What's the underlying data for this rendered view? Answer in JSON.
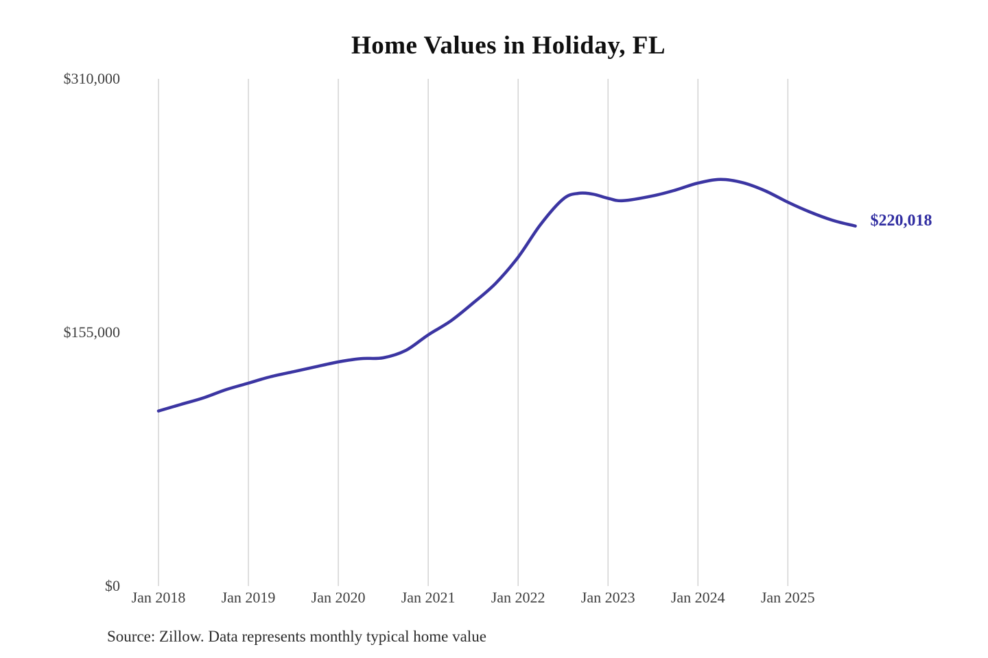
{
  "page": {
    "background": "#ffffff"
  },
  "chart": {
    "title": "Home Values in Holiday, FL",
    "source_note": "Source: Zillow. Data represents monthly typical home value",
    "end_label": "$220,018",
    "colors": {
      "line": "#3b35a2",
      "end_label": "#302da1",
      "gridline": "#cccccc",
      "tick_text": "#3d3d3d",
      "title_text": "#0f0f0f",
      "source_text": "#2b2b2b",
      "background": "#ffffff"
    }
  },
  "chart_data": {
    "type": "line",
    "title": "Home Values in Holiday, FL",
    "xlabel": "",
    "ylabel": "",
    "ylim": [
      0,
      310000
    ],
    "grid": "vertical-only",
    "legend": "none",
    "y_ticks": [
      {
        "label": "$0",
        "value": 0
      },
      {
        "label": "$155,000",
        "value": 155000
      },
      {
        "label": "$310,000",
        "value": 310000
      }
    ],
    "x_ticks": [
      {
        "label": "Jan 2018",
        "month_index": 0
      },
      {
        "label": "Jan 2019",
        "month_index": 12
      },
      {
        "label": "Jan 2020",
        "month_index": 24
      },
      {
        "label": "Jan 2021",
        "month_index": 36
      },
      {
        "label": "Jan 2022",
        "month_index": 48
      },
      {
        "label": "Jan 2023",
        "month_index": 60
      },
      {
        "label": "Jan 2024",
        "month_index": 72
      },
      {
        "label": "Jan 2025",
        "month_index": 84
      }
    ],
    "series": [
      {
        "name": "Monthly typical home value",
        "final_value": 220018,
        "final_label": "$220,018",
        "points": [
          [
            "2018-01",
            107000
          ],
          [
            "2018-04",
            111000
          ],
          [
            "2018-07",
            115000
          ],
          [
            "2018-10",
            120000
          ],
          [
            "2019-01",
            124000
          ],
          [
            "2019-04",
            128000
          ],
          [
            "2019-07",
            131000
          ],
          [
            "2019-10",
            134000
          ],
          [
            "2020-01",
            137000
          ],
          [
            "2020-04",
            139000
          ],
          [
            "2020-07",
            139500
          ],
          [
            "2020-10",
            144000
          ],
          [
            "2021-01",
            153500
          ],
          [
            "2021-04",
            162000
          ],
          [
            "2021-07",
            173000
          ],
          [
            "2021-10",
            185000
          ],
          [
            "2022-01",
            201000
          ],
          [
            "2022-04",
            221000
          ],
          [
            "2022-07",
            236500
          ],
          [
            "2022-09",
            240000
          ],
          [
            "2022-11",
            239500
          ],
          [
            "2023-01",
            237000
          ],
          [
            "2023-03",
            235500
          ],
          [
            "2023-07",
            238500
          ],
          [
            "2023-10",
            242000
          ],
          [
            "2024-01",
            246300
          ],
          [
            "2024-04",
            248500
          ],
          [
            "2024-07",
            246500
          ],
          [
            "2024-10",
            241500
          ],
          [
            "2025-01",
            234600
          ],
          [
            "2025-04",
            228500
          ],
          [
            "2025-07",
            223500
          ],
          [
            "2025-10",
            220018
          ]
        ]
      }
    ],
    "source": "Source: Zillow. Data represents monthly typical home value"
  }
}
